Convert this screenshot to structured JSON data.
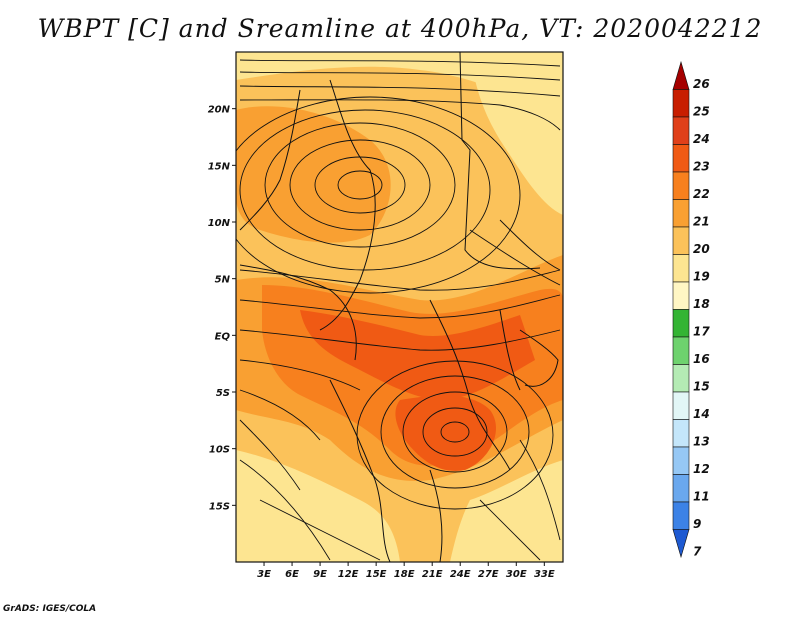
{
  "title": "WBPT [C] and Sreamline at 400hPa, VT: 2020042212",
  "credit": "GrADS: IGES/COLA",
  "map": {
    "lat_labels": [
      "20N",
      "15N",
      "10N",
      "5N",
      "EQ",
      "5S",
      "10S",
      "15S"
    ],
    "lat_values": [
      20,
      15,
      10,
      5,
      0,
      -5,
      -10,
      -15
    ],
    "lon_labels": [
      "3E",
      "6E",
      "9E",
      "12E",
      "15E",
      "18E",
      "21E",
      "24E",
      "27E",
      "30E",
      "33E"
    ],
    "lon_values": [
      3,
      6,
      9,
      12,
      15,
      18,
      21,
      24,
      27,
      30,
      33
    ],
    "lon_range": [
      0,
      35
    ],
    "lat_range": [
      -20,
      25
    ]
  },
  "colorbar": {
    "labels": [
      "26",
      "25",
      "24",
      "23",
      "22",
      "21",
      "20",
      "19",
      "18",
      "17",
      "16",
      "15",
      "14",
      "13",
      "12",
      "11",
      "9",
      "7"
    ],
    "colors": [
      "#a50000",
      "#c81e00",
      "#e0401a",
      "#f05a14",
      "#f7801e",
      "#f9a032",
      "#fbc25a",
      "#fde591",
      "#fff6c4",
      "#34b434",
      "#6ed26e",
      "#b4ebb4",
      "#e2f6f6",
      "#c4e6fa",
      "#96c8f5",
      "#6aa8ee",
      "#3c82e6",
      "#1e5ad2"
    ]
  }
}
